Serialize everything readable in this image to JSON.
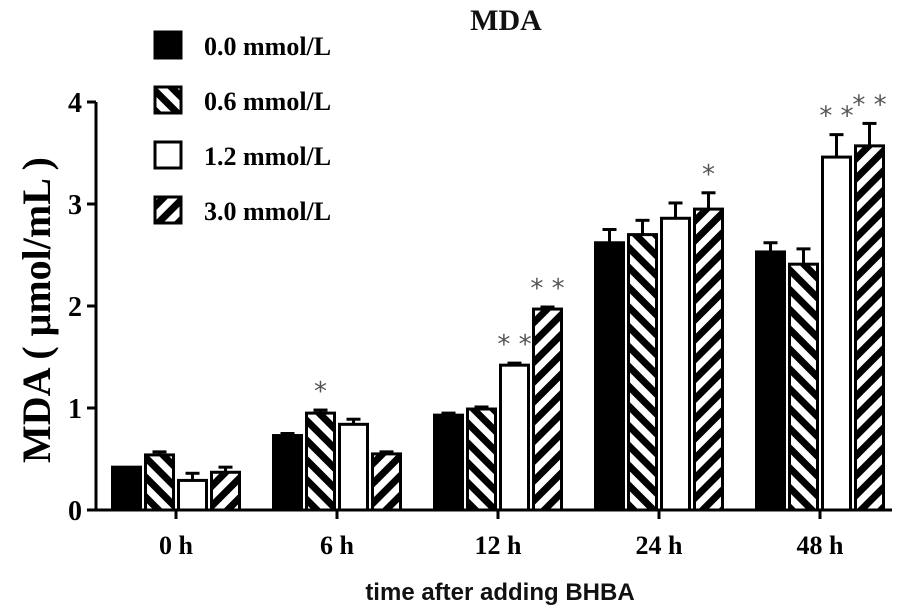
{
  "chart_data": {
    "type": "bar",
    "title": "MDA",
    "xlabel": "time after adding BHBA",
    "ylabel": "MDA ( μmol/mL )",
    "ylim": [
      0,
      4
    ],
    "yticks": [
      0,
      1,
      2,
      3,
      4
    ],
    "grid": false,
    "legend_position": "top-left",
    "categories": [
      "0 h",
      "6 h",
      "12 h",
      "24 h",
      "48 h"
    ],
    "series": [
      {
        "name": "0.0 mmol/L",
        "pattern": "solid-black",
        "values": [
          0.42,
          0.73,
          0.93,
          2.62,
          2.53
        ],
        "error": [
          0.0,
          0.02,
          0.02,
          0.13,
          0.09
        ],
        "significance": [
          "",
          "",
          "",
          "",
          ""
        ]
      },
      {
        "name": "0.6 mmol/L",
        "pattern": "hatch-backslash",
        "values": [
          0.54,
          0.95,
          0.99,
          2.7,
          2.41
        ],
        "error": [
          0.03,
          0.03,
          0.02,
          0.14,
          0.15
        ],
        "significance": [
          "",
          "*",
          "",
          "",
          ""
        ]
      },
      {
        "name": "1.2 mmol/L",
        "pattern": "white",
        "values": [
          0.29,
          0.84,
          1.42,
          2.86,
          3.46
        ],
        "error": [
          0.07,
          0.05,
          0.02,
          0.15,
          0.22
        ],
        "significance": [
          "",
          "",
          "**",
          "",
          "**"
        ]
      },
      {
        "name": "3.0 mmol/L",
        "pattern": "hatch-slash",
        "values": [
          0.37,
          0.55,
          1.97,
          2.95,
          3.57
        ],
        "error": [
          0.05,
          0.02,
          0.02,
          0.16,
          0.22
        ],
        "significance": [
          "",
          "",
          "**",
          "*",
          "**"
        ]
      }
    ]
  },
  "colors": {
    "bar_fill": "#000000",
    "bar_edge": "#000000",
    "background": "#ffffff",
    "significance": "#555555"
  }
}
